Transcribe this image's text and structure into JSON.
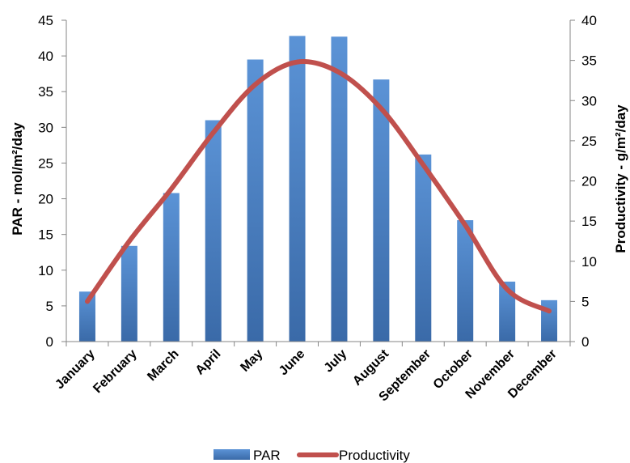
{
  "chart_data": {
    "type": "bar",
    "categories": [
      "January",
      "February",
      "March",
      "April",
      "May",
      "June",
      "July",
      "August",
      "September",
      "October",
      "November",
      "December"
    ],
    "series": [
      {
        "name": "PAR",
        "type": "bar",
        "axis": "left",
        "color": "#4a7fc1",
        "values": [
          7.0,
          13.4,
          20.8,
          31.0,
          39.5,
          42.8,
          42.7,
          36.7,
          26.2,
          17.0,
          8.4,
          5.8
        ]
      },
      {
        "name": "Productivity",
        "type": "line",
        "axis": "right",
        "color": "#c0504d",
        "smooth": true,
        "values": [
          5.0,
          12.5,
          19.0,
          26.0,
          32.0,
          34.8,
          33.5,
          29.0,
          22.0,
          14.5,
          6.5,
          3.8
        ]
      }
    ],
    "ylabel": "PAR - mol/m²/day",
    "y2label": "Productivity - g/m²/day",
    "ylim": [
      0,
      45
    ],
    "y_ticks": [
      0,
      5,
      10,
      15,
      20,
      25,
      30,
      35,
      40,
      45
    ],
    "y2lim": [
      0,
      40
    ],
    "y2_ticks": [
      0,
      5,
      10,
      15,
      20,
      25,
      30,
      35,
      40
    ],
    "grid": false,
    "legend_position": "bottom",
    "legend": [
      "PAR",
      "Productivity"
    ]
  }
}
